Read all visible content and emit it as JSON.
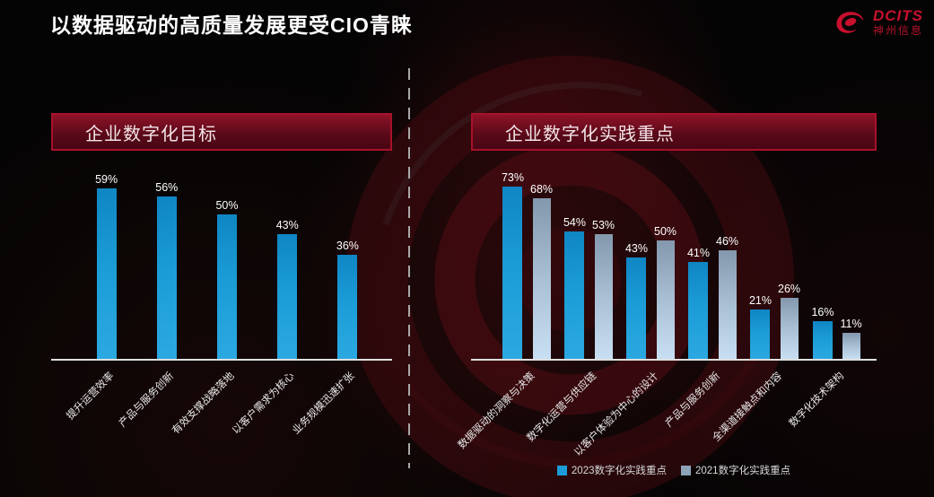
{
  "title": "以数据驱动的高质量发展更受CIO青睐",
  "logo": {
    "brand": "DCITS",
    "company": "神州信息",
    "color": "#c8102e"
  },
  "panels": [
    {
      "header": "企业数字化目标"
    },
    {
      "header": "企业数字化实践重点"
    }
  ],
  "legend": [
    {
      "label": "2023数字化实践重点",
      "color": "#1b9cd6"
    },
    {
      "label": "2021数字化实践重点",
      "color": "#8da3b8"
    }
  ],
  "colors": {
    "background": "#040404",
    "accent_red": "#a8112a",
    "banner_fill": "#5c0a19",
    "bar_2023": "#1b9cd6",
    "bar_2021": "#a9bfd4",
    "axis": "#dedede",
    "text": "#ffffff"
  },
  "chart_data": [
    {
      "type": "bar",
      "title": "企业数字化目标",
      "categories": [
        "提升运营效率",
        "产品与服务创新",
        "有效支撑战略落地",
        "以客户需求为核心",
        "业务规模迅速扩张"
      ],
      "values": [
        59,
        56,
        50,
        43,
        36
      ],
      "unit": "%",
      "xlabel": "",
      "ylabel": "",
      "ylim": [
        0,
        62
      ],
      "grid": false,
      "value_labels": true,
      "legend_position": "none"
    },
    {
      "type": "bar",
      "title": "企业数字化实践重点",
      "categories": [
        "数据驱动的洞察与决策",
        "数字化运营与供应链",
        "以客户体验为中心的设计",
        "产品与服务创新",
        "全渠道接触点和内容",
        "数字化技术架构"
      ],
      "series": [
        {
          "name": "2023数字化实践重点",
          "values": [
            73,
            54,
            43,
            41,
            21,
            16
          ]
        },
        {
          "name": "2021数字化实践重点",
          "values": [
            68,
            53,
            50,
            46,
            26,
            11
          ]
        }
      ],
      "unit": "%",
      "xlabel": "",
      "ylabel": "",
      "ylim": [
        0,
        76
      ],
      "grid": false,
      "value_labels": true,
      "legend_position": "bottom"
    }
  ]
}
